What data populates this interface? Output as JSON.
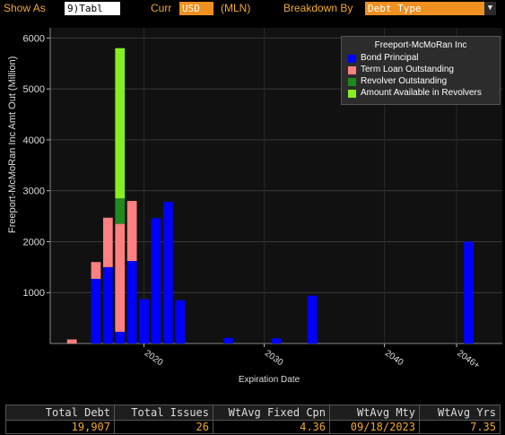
{
  "toolbar": {
    "show_as_label": "Show As",
    "show_as_value": "9)Tabl",
    "curr_label": "Curr",
    "curr_value": "USD",
    "mln_label": "(MLN)",
    "breakdown_label": "Breakdown By",
    "breakdown_value": "Debt Type",
    "dropdown_arrow": "▼"
  },
  "chart_data": {
    "type": "bar",
    "stacked": true,
    "title": "Freeport-McMoRan Inc",
    "xlabel": "Expiration Date",
    "ylabel": "Freeport-McMoRan Inc Amt Out (Million)",
    "ylim": [
      0,
      6200
    ],
    "xlim": [
      2012.2,
      2049.8
    ],
    "y_ticks": [
      1000,
      2000,
      3000,
      4000,
      5000,
      6000
    ],
    "x_ticks": [
      {
        "value": 2020,
        "label": "2020"
      },
      {
        "value": 2030,
        "label": "2030"
      },
      {
        "value": 2040,
        "label": "2040"
      },
      {
        "value": 2046,
        "label": "2046+"
      }
    ],
    "grid": true,
    "legend_position": "top-right",
    "x": [
      2013,
      2014,
      2015,
      2016,
      2017,
      2018,
      2019,
      2020,
      2021,
      2022,
      2023,
      2024,
      2025,
      2026,
      2027,
      2028,
      2029,
      2030,
      2031,
      2032,
      2033,
      2034,
      2035,
      2036,
      2037,
      2038,
      2039,
      2040,
      2041,
      2042,
      2043,
      2044,
      2045,
      2046,
      2047,
      2048
    ],
    "series": [
      {
        "name": "Bond Principal",
        "color": "#0000ff",
        "values": [
          0,
          0,
          0,
          1270,
          1500,
          230,
          1620,
          870,
          2460,
          2780,
          850,
          0,
          0,
          0,
          110,
          0,
          0,
          0,
          100,
          0,
          0,
          940,
          0,
          0,
          0,
          0,
          0,
          0,
          0,
          0,
          0,
          0,
          0,
          0,
          2000,
          0
        ]
      },
      {
        "name": "Term Loan Outstanding",
        "color": "#ff8080",
        "values": [
          0,
          80,
          0,
          330,
          970,
          2120,
          1180,
          0,
          0,
          0,
          0,
          0,
          0,
          0,
          0,
          0,
          0,
          0,
          0,
          0,
          0,
          0,
          0,
          0,
          0,
          0,
          0,
          0,
          0,
          0,
          0,
          0,
          0,
          0,
          0,
          0
        ]
      },
      {
        "name": "Revolver Outstanding",
        "color": "#1e8a1e",
        "values": [
          0,
          0,
          0,
          0,
          0,
          500,
          0,
          0,
          0,
          0,
          0,
          0,
          0,
          0,
          0,
          0,
          0,
          0,
          0,
          0,
          0,
          0,
          0,
          0,
          0,
          0,
          0,
          0,
          0,
          0,
          0,
          0,
          0,
          0,
          0,
          0
        ]
      },
      {
        "name": "Amount Available in Revolvers",
        "color": "#88ee22",
        "values": [
          0,
          0,
          0,
          0,
          0,
          2950,
          0,
          0,
          0,
          0,
          0,
          0,
          0,
          0,
          0,
          0,
          0,
          0,
          0,
          0,
          0,
          0,
          0,
          0,
          0,
          0,
          0,
          0,
          0,
          0,
          0,
          0,
          0,
          0,
          0,
          0
        ]
      }
    ]
  },
  "footer": {
    "columns": [
      {
        "header": "Total Debt",
        "value": "19,907"
      },
      {
        "header": "Total Issues",
        "value": "26"
      },
      {
        "header": "WtAvg Fixed Cpn",
        "value": "4.36"
      },
      {
        "header": "WtAvg Mty",
        "value": "09/18/2023"
      },
      {
        "header": "WtAvg Yrs",
        "value": "7.35"
      }
    ]
  }
}
